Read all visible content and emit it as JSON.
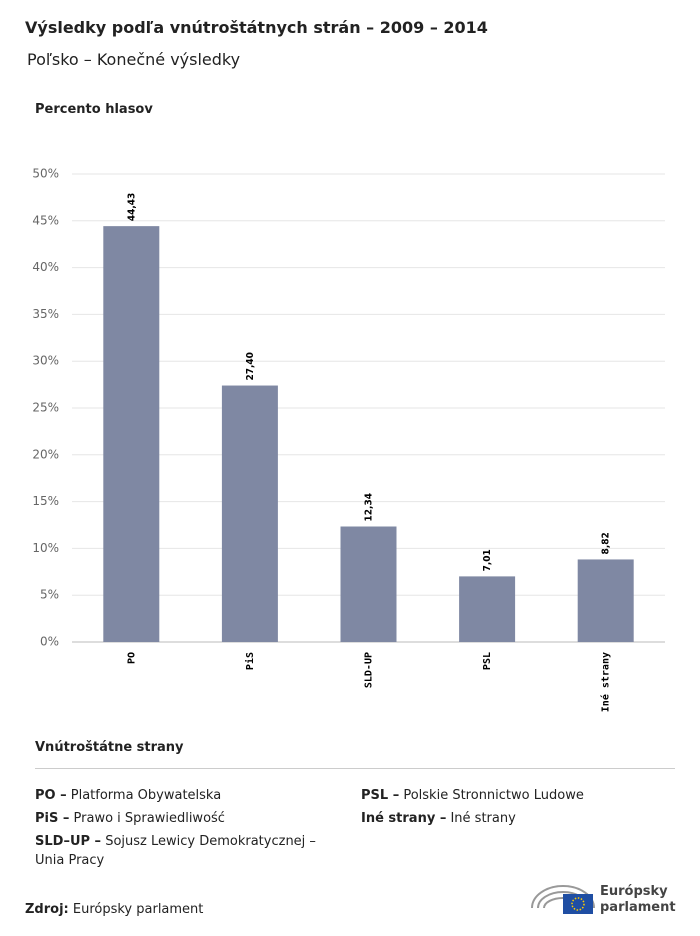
{
  "chart_data": {
    "type": "bar",
    "title": "Výsledky podľa vnútroštátnych strán – 2009 – 2014",
    "subtitle": "Poľsko – Konečné výsledky",
    "ylabel": "Percento hlasov",
    "categories": [
      "PO",
      "PiS",
      "SLD-UP",
      "PSL",
      "Iné strany"
    ],
    "values": [
      44.43,
      27.4,
      12.34,
      7.01,
      8.82
    ],
    "value_labels": [
      "44,43",
      "27,40",
      "12,34",
      "7,01",
      "8,82"
    ],
    "color": "#7f88a3",
    "ylim": [
      0,
      50
    ],
    "yticks": [
      {
        "value": 0,
        "label": "0%"
      },
      {
        "value": 5,
        "label": "5%"
      },
      {
        "value": 10,
        "label": "10%"
      },
      {
        "value": 15,
        "label": "15%"
      },
      {
        "value": 20,
        "label": "20%"
      },
      {
        "value": 25,
        "label": "25%"
      },
      {
        "value": 30,
        "label": "30%"
      },
      {
        "value": 35,
        "label": "35%"
      },
      {
        "value": 40,
        "label": "40%"
      },
      {
        "value": 45,
        "label": "45%"
      },
      {
        "value": 50,
        "label": "50%"
      }
    ],
    "grid": true
  },
  "legend": {
    "title": "Vnútroštátne strany",
    "items": [
      {
        "abbr": "PO –",
        "name": "Platforma Obywatelska"
      },
      {
        "abbr": "PiS –",
        "name": "Prawo i Sprawiedliwość"
      },
      {
        "abbr": "SLD–UP –",
        "name": "Sojusz Lewicy Demokratycznej – Unia Pracy"
      },
      {
        "abbr": "PSL –",
        "name": "Polskie Stronnictwo Ludowe"
      },
      {
        "abbr": "Iné strany –",
        "name": "Iné strany"
      }
    ]
  },
  "source": {
    "label": "Zdroj:",
    "value": "Európsky parlament"
  },
  "logo": [
    "Európsky",
    "parlament"
  ]
}
